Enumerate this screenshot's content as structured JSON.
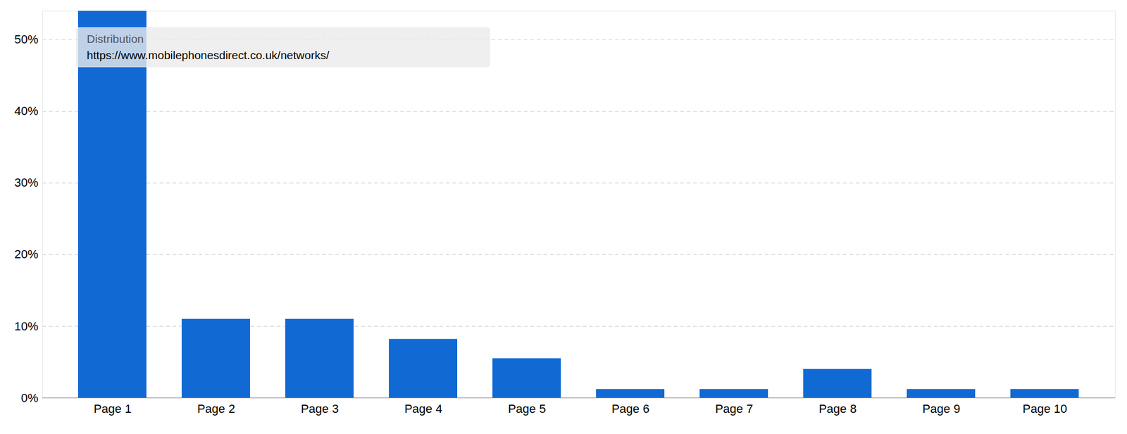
{
  "chart_data": {
    "type": "bar",
    "categories": [
      "Page 1",
      "Page 2",
      "Page 3",
      "Page 4",
      "Page 5",
      "Page 6",
      "Page 7",
      "Page 8",
      "Page 9",
      "Page 10"
    ],
    "values": [
      54,
      11,
      11,
      8.2,
      5.5,
      1.2,
      1.2,
      4,
      1.2,
      1.2
    ],
    "color": "#1169d4",
    "ylim": [
      0,
      54
    ],
    "yticks": [
      {
        "value": 0,
        "label": "0%"
      },
      {
        "value": 10,
        "label": "10%"
      },
      {
        "value": 20,
        "label": "20%"
      },
      {
        "value": 30,
        "label": "30%"
      },
      {
        "value": 40,
        "label": "40%"
      },
      {
        "value": 50,
        "label": "50%"
      }
    ],
    "grid": true,
    "annotations": [
      "Distribution",
      "https://www.mobilephonesdirect.co.uk/networks/"
    ]
  }
}
